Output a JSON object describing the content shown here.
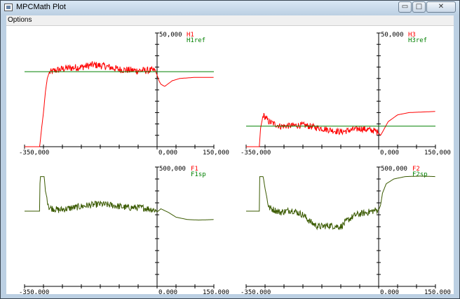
{
  "window": {
    "title": "MPCMath Plot",
    "minimize_icon": "minimize-icon",
    "maximize_icon": "maximize-icon",
    "close_icon": "close-icon"
  },
  "menu": {
    "options_label": "Options"
  },
  "colors": {
    "red": "#ff0000",
    "green": "#008000",
    "dark_green": "#3a5a00",
    "axis": "#000000"
  },
  "chart_data": [
    {
      "type": "line",
      "xlim": [
        -350000,
        150000
      ],
      "ylim": [
        0,
        50000
      ],
      "x_tick_labels": [
        "-350,000",
        "0,000",
        "150,000"
      ],
      "y_top_label": "50,000",
      "legend": [
        "H1",
        "H1ref"
      ],
      "series": [
        {
          "name": "H1",
          "color": "#ff0000",
          "points": [
            [
              -350000,
              0
            ],
            [
              -310000,
              0
            ],
            [
              -305000,
              8000
            ],
            [
              -300000,
              15000
            ],
            [
              -295000,
              24000
            ],
            [
              -290000,
              30000
            ],
            [
              -285000,
              32500
            ],
            [
              -270000,
              33500
            ],
            [
              -240000,
              34500
            ],
            [
              -200000,
              35000
            ],
            [
              -170000,
              36000
            ],
            [
              -140000,
              35500
            ],
            [
              -100000,
              34000
            ],
            [
              -60000,
              33500
            ],
            [
              -30000,
              33500
            ],
            [
              -5000,
              33500
            ],
            [
              0,
              31500
            ],
            [
              5000,
              29000
            ],
            [
              10000,
              27500
            ],
            [
              20000,
              26500
            ],
            [
              40000,
              29000
            ],
            [
              60000,
              30000
            ],
            [
              100000,
              30500
            ],
            [
              150000,
              30500
            ]
          ],
          "noise": 1600,
          "noise_range": [
            -285000,
            -3000
          ]
        },
        {
          "name": "H1ref",
          "color": "#008000",
          "points": [
            [
              -350000,
              33000
            ],
            [
              150000,
              33000
            ]
          ],
          "noise": 0
        }
      ]
    },
    {
      "type": "line",
      "xlim": [
        -350000,
        150000
      ],
      "ylim": [
        0,
        50000
      ],
      "x_tick_labels": [
        "-350,000",
        "0,000",
        "150,000"
      ],
      "y_top_label": "50,000",
      "legend": [
        "H3",
        "H3ref"
      ],
      "series": [
        {
          "name": "H3",
          "color": "#ff0000",
          "points": [
            [
              -350000,
              0
            ],
            [
              -315000,
              0
            ],
            [
              -312000,
              8000
            ],
            [
              -305000,
              14000
            ],
            [
              -290000,
              11000
            ],
            [
              -260000,
              9000
            ],
            [
              -200000,
              9500
            ],
            [
              -150000,
              8000
            ],
            [
              -100000,
              6500
            ],
            [
              -50000,
              8000
            ],
            [
              -10000,
              7000
            ],
            [
              0,
              6000
            ],
            [
              5000,
              5000
            ],
            [
              12000,
              7000
            ],
            [
              25000,
              11000
            ],
            [
              50000,
              14000
            ],
            [
              80000,
              15000
            ],
            [
              150000,
              15500
            ]
          ],
          "noise": 1400,
          "noise_range": [
            -305000,
            -3000
          ]
        },
        {
          "name": "H3ref",
          "color": "#008000",
          "points": [
            [
              -350000,
              9000
            ],
            [
              150000,
              9000
            ]
          ],
          "noise": 0
        }
      ]
    },
    {
      "type": "line",
      "xlim": [
        -350000,
        150000
      ],
      "ylim": [
        0,
        500000
      ],
      "x_tick_labels": [
        "-350,000",
        "0,000",
        "150,000"
      ],
      "y_top_label": "500,000",
      "legend": [
        "F1",
        "F1sp"
      ],
      "series": [
        {
          "name": "F1sp",
          "color": "#3a5a00",
          "points": [
            [
              -350000,
              315000
            ],
            [
              -310000,
              315000
            ],
            [
              -309000,
              460000
            ],
            [
              -298000,
              460000
            ],
            [
              -295000,
              400000
            ],
            [
              -285000,
              330000
            ],
            [
              -260000,
              320000
            ],
            [
              -220000,
              330000
            ],
            [
              -180000,
              340000
            ],
            [
              -150000,
              345000
            ],
            [
              -120000,
              340000
            ],
            [
              -80000,
              330000
            ],
            [
              -40000,
              330000
            ],
            [
              -5000,
              320000
            ],
            [
              0,
              312000
            ],
            [
              10000,
              325000
            ],
            [
              30000,
              310000
            ],
            [
              50000,
              290000
            ],
            [
              80000,
              280000
            ],
            [
              110000,
              278000
            ],
            [
              150000,
              280000
            ]
          ],
          "noise": 14000,
          "noise_range": [
            -290000,
            -3000
          ]
        },
        {
          "name": "F1",
          "color": "#ff0000",
          "points": [],
          "noise": 0
        }
      ]
    },
    {
      "type": "line",
      "xlim": [
        -350000,
        150000
      ],
      "ylim": [
        0,
        500000
      ],
      "x_tick_labels": [
        "-350,000",
        "0,000",
        "150,000"
      ],
      "y_top_label": "500,000",
      "legend": [
        "F2",
        "F2sp"
      ],
      "series": [
        {
          "name": "F2sp",
          "color": "#3a5a00",
          "points": [
            [
              -350000,
              315000
            ],
            [
              -315000,
              315000
            ],
            [
              -314000,
              460000
            ],
            [
              -305000,
              460000
            ],
            [
              -300000,
              410000
            ],
            [
              -290000,
              330000
            ],
            [
              -260000,
              310000
            ],
            [
              -230000,
              320000
            ],
            [
              -200000,
              300000
            ],
            [
              -180000,
              270000
            ],
            [
              -160000,
              250000
            ],
            [
              -130000,
              255000
            ],
            [
              -100000,
              250000
            ],
            [
              -80000,
              280000
            ],
            [
              -60000,
              300000
            ],
            [
              -30000,
              310000
            ],
            [
              -5000,
              320000
            ],
            [
              0,
              320000
            ],
            [
              5000,
              340000
            ],
            [
              10000,
              390000
            ],
            [
              20000,
              430000
            ],
            [
              40000,
              450000
            ],
            [
              70000,
              460000
            ],
            [
              110000,
              462000
            ],
            [
              150000,
              460000
            ]
          ],
          "noise": 14000,
          "noise_range": [
            -295000,
            -3000
          ]
        },
        {
          "name": "F2",
          "color": "#ff0000",
          "points": [],
          "noise": 0
        }
      ]
    }
  ]
}
